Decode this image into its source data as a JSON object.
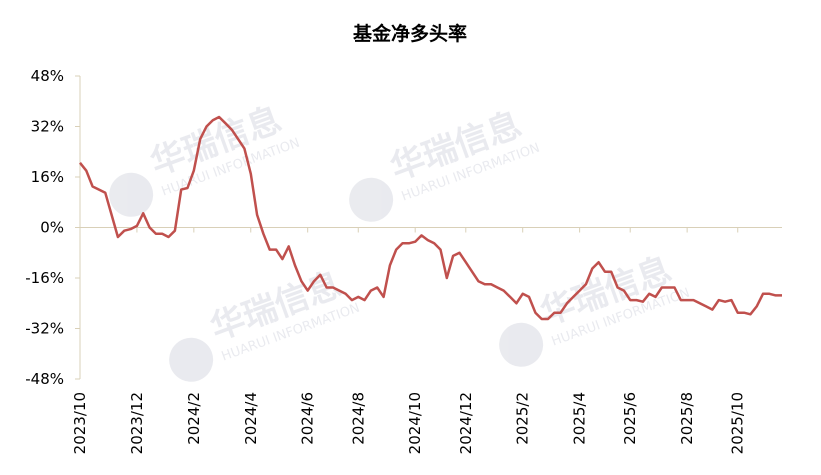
{
  "chart_data": {
    "type": "line",
    "title": "基金净多头率",
    "watermark": [
      "华瑞信息",
      "HUARUI INFORMATION"
    ],
    "categories": [
      "2023/10",
      null,
      null,
      null,
      null,
      null,
      null,
      null,
      null,
      "2023/12",
      null,
      null,
      null,
      null,
      null,
      null,
      null,
      null,
      "2024/2",
      null,
      null,
      null,
      null,
      null,
      null,
      null,
      null,
      "2024/4",
      null,
      null,
      null,
      null,
      null,
      null,
      null,
      null,
      "2024/6",
      null,
      null,
      null,
      null,
      null,
      null,
      null,
      "2024/8",
      null,
      null,
      null,
      null,
      null,
      null,
      null,
      null,
      "2024/10",
      null,
      null,
      null,
      null,
      null,
      null,
      null,
      "2024/12",
      null,
      null,
      null,
      null,
      null,
      null,
      null,
      null,
      "2025/2",
      null,
      null,
      null,
      null,
      null,
      null,
      null,
      null,
      "2025/4",
      null,
      null,
      null,
      null,
      null,
      null,
      null,
      "2025/6",
      null,
      null,
      null,
      null,
      null,
      null,
      null,
      null,
      "2025/8",
      null,
      null,
      null,
      null,
      null,
      null,
      null,
      "2025/10",
      null,
      null,
      null,
      null,
      null,
      null,
      null
    ],
    "series": [
      {
        "name": "基金净多头率",
        "color": "#c0504d",
        "values": [
          20.5,
          18,
          13,
          12,
          11,
          4,
          -3,
          -1,
          -0.5,
          0.5,
          4.5,
          0,
          -2,
          -2,
          -3,
          -1,
          12,
          12.5,
          18,
          28,
          32,
          34,
          35,
          33,
          31,
          28,
          25,
          17,
          4,
          -2,
          -7,
          -7,
          -10,
          -6,
          -12,
          -17,
          -20,
          -17,
          -15,
          -19,
          -19,
          -20,
          -21,
          -23,
          -22,
          -23,
          -20,
          -19,
          -22,
          -12,
          -7,
          -5,
          -5,
          -4.5,
          -2.5,
          -4,
          -5,
          -7,
          -16,
          -9,
          -8,
          -11,
          -14,
          -17,
          -18,
          -18,
          -19,
          -20,
          -22,
          -24,
          -21,
          -22,
          -27,
          -29,
          -29,
          -27,
          -27,
          -24,
          -22,
          -20,
          -18,
          -13,
          -11,
          -14,
          -14,
          -19,
          -20,
          -23,
          -23,
          -23.5,
          -21,
          -22,
          -19,
          -19,
          -19,
          -23,
          -23,
          -23,
          -24,
          -25,
          -26,
          -23,
          -23.5,
          -23,
          -27,
          -27,
          -27.5,
          -25,
          -21,
          -21,
          -21.5,
          -21.5
        ]
      }
    ],
    "ylim": [
      -48,
      48
    ],
    "yticks": [
      {
        "value": -48,
        "label": "-48%"
      },
      {
        "value": -32,
        "label": "-32%"
      },
      {
        "value": -16,
        "label": "-16%"
      },
      {
        "value": 0,
        "label": "0%"
      },
      {
        "value": 16,
        "label": "16%"
      },
      {
        "value": 32,
        "label": "32%"
      },
      {
        "value": 48,
        "label": "48%"
      }
    ]
  }
}
